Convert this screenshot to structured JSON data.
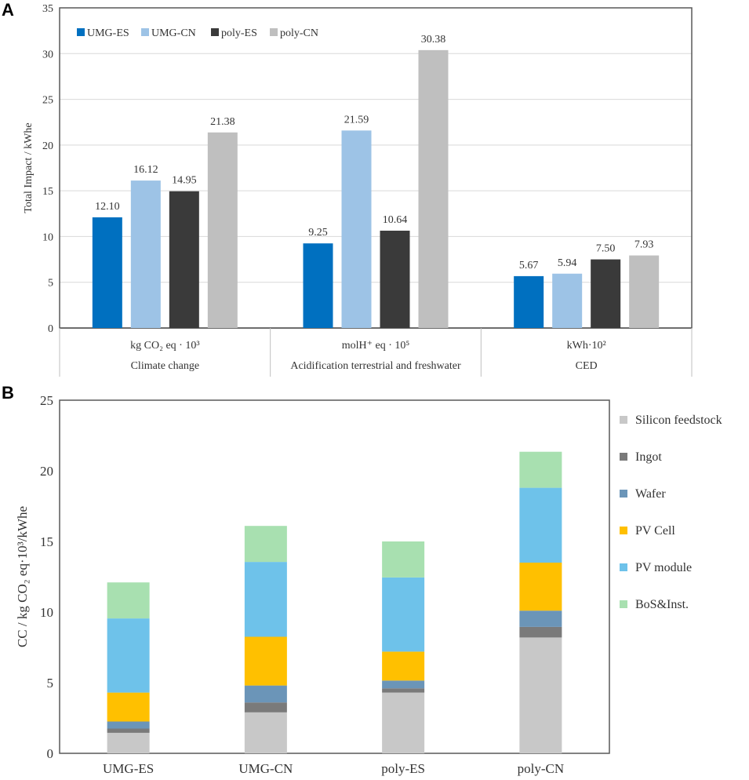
{
  "figure": {
    "panel_a_label": "A",
    "panel_b_label": "B"
  },
  "chart_data": [
    {
      "type": "bar",
      "panel": "A",
      "ylabel": "Total Impact / kWhe",
      "ylim": [
        0,
        35
      ],
      "yticks": [
        "0",
        "5",
        "10",
        "15",
        "20",
        "25",
        "30",
        "35"
      ],
      "grid": true,
      "legend_position": "top-left",
      "categories": [
        {
          "unit": "kg CO₂ eq · 10³",
          "name": "Climate change"
        },
        {
          "unit": "molH⁺ eq · 10⁵",
          "name": "Acidification terrestrial and freshwater"
        },
        {
          "unit": "kWh·10²",
          "name": "CED"
        }
      ],
      "series": [
        {
          "name": "UMG-ES",
          "color": "#0070c0",
          "values": [
            12.1,
            9.25,
            5.67
          ],
          "labels": [
            "12.10",
            "9.25",
            "5.67"
          ]
        },
        {
          "name": "UMG-CN",
          "color": "#9dc3e6",
          "values": [
            16.12,
            21.59,
            5.94
          ],
          "labels": [
            "16.12",
            "21.59",
            "5.94"
          ]
        },
        {
          "name": "poly-ES",
          "color": "#3a3a3a",
          "values": [
            14.95,
            10.64,
            7.5
          ],
          "labels": [
            "14.95",
            "10.64",
            "7.50"
          ]
        },
        {
          "name": "poly-CN",
          "color": "#bfbfbf",
          "values": [
            21.38,
            30.38,
            7.93
          ],
          "labels": [
            "21.38",
            "30.38",
            "7.93"
          ]
        }
      ]
    },
    {
      "type": "stacked-bar",
      "panel": "B",
      "ylabel": "CC / kg CO₂ eq·10³/kWhe",
      "ylim": [
        0,
        25
      ],
      "yticks": [
        "0",
        "5",
        "10",
        "15",
        "20",
        "25"
      ],
      "grid": false,
      "legend_position": "right",
      "categories": [
        "UMG-ES",
        "UMG-CN",
        "poly-ES",
        "poly-CN"
      ],
      "series": [
        {
          "name": "Silicon feedstock",
          "color": "#c8c8c8",
          "values": [
            1.45,
            2.9,
            4.3,
            8.2
          ]
        },
        {
          "name": "Ingot",
          "color": "#7a7a7a",
          "values": [
            0.3,
            0.7,
            0.3,
            0.75
          ]
        },
        {
          "name": "Wafer",
          "color": "#6b95b8",
          "values": [
            0.5,
            1.2,
            0.55,
            1.15
          ]
        },
        {
          "name": "PV Cell",
          "color": "#ffc000",
          "values": [
            2.05,
            3.45,
            2.05,
            3.4
          ]
        },
        {
          "name": "PV module",
          "color": "#6ec2ea",
          "values": [
            5.25,
            5.3,
            5.25,
            5.3
          ]
        },
        {
          "name": "BoS&Inst.",
          "color": "#a8e0b0",
          "values": [
            2.55,
            2.55,
            2.55,
            2.55
          ]
        }
      ]
    }
  ]
}
